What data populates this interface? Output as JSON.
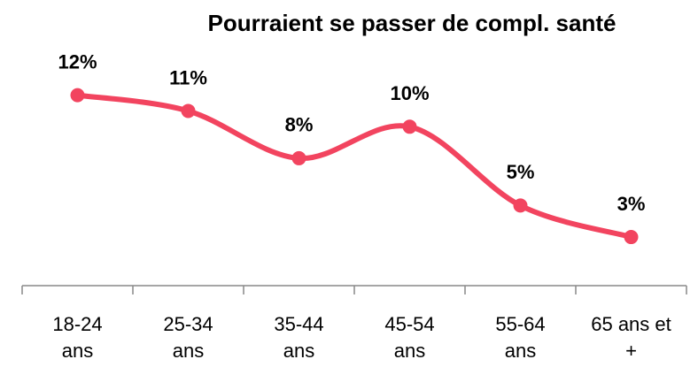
{
  "chart_data": {
    "type": "line",
    "title": "Pourraient se passer de compl. santé",
    "categories": [
      "18-24 ans",
      "25-34 ans",
      "35-44 ans",
      "45-54 ans",
      "55-64 ans",
      "65 ans et +"
    ],
    "series": [
      {
        "name": "Pourraient se passer de compl. santé",
        "color": "#f2445f",
        "values": [
          12,
          11,
          8,
          10,
          5,
          3
        ],
        "value_labels": [
          "12%",
          "11%",
          "8%",
          "10%",
          "5%",
          "3%"
        ]
      }
    ],
    "ylim": [
      0,
      14
    ],
    "smooth": true
  }
}
